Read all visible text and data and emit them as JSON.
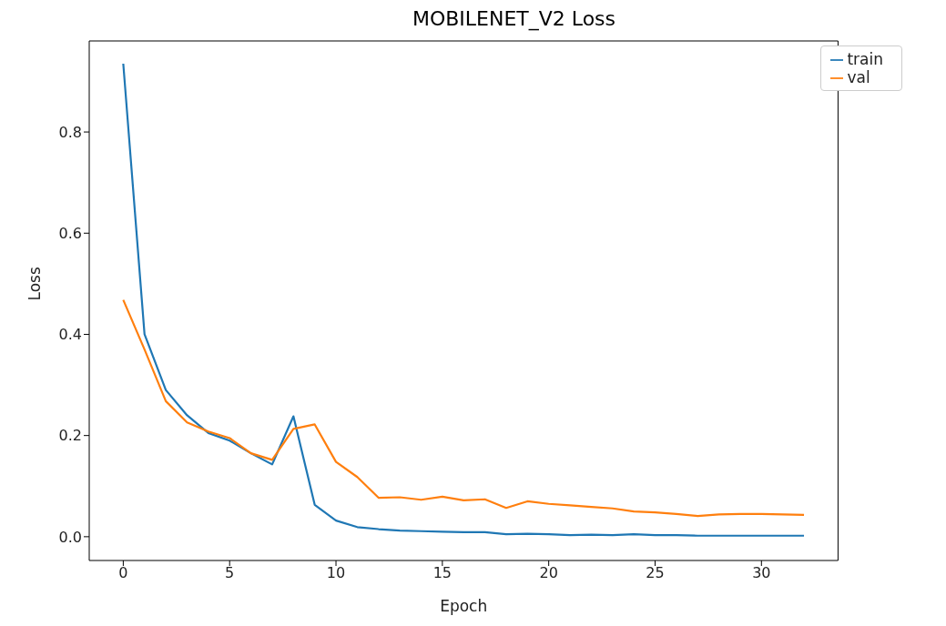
{
  "chart_data": {
    "type": "line",
    "title": "MOBILENET_V2 Loss",
    "xlabel": "Epoch",
    "ylabel": "Loss",
    "x": [
      0,
      1,
      2,
      3,
      4,
      5,
      6,
      7,
      8,
      9,
      10,
      11,
      12,
      13,
      14,
      15,
      16,
      17,
      18,
      19,
      20,
      21,
      22,
      23,
      24,
      25,
      26,
      27,
      28,
      29,
      30,
      31,
      32
    ],
    "series": [
      {
        "name": "train",
        "color": "#1f77b4",
        "values": [
          0.935,
          0.4,
          0.29,
          0.24,
          0.205,
          0.19,
          0.165,
          0.143,
          0.238,
          0.063,
          0.032,
          0.019,
          0.015,
          0.012,
          0.011,
          0.01,
          0.009,
          0.009,
          0.005,
          0.006,
          0.005,
          0.003,
          0.004,
          0.003,
          0.005,
          0.003,
          0.003,
          0.002,
          0.002,
          0.002,
          0.002,
          0.002,
          0.002
        ]
      },
      {
        "name": "val",
        "color": "#ff7f0e",
        "values": [
          0.468,
          0.37,
          0.268,
          0.226,
          0.208,
          0.195,
          0.165,
          0.152,
          0.213,
          0.222,
          0.148,
          0.118,
          0.077,
          0.078,
          0.073,
          0.079,
          0.072,
          0.074,
          0.057,
          0.07,
          0.065,
          0.062,
          0.059,
          0.056,
          0.05,
          0.048,
          0.045,
          0.041,
          0.044,
          0.045,
          0.045,
          0.044,
          0.043
        ]
      }
    ],
    "xlim": [
      -1.6,
      33.6
    ],
    "xticks": [
      0,
      5,
      10,
      15,
      20,
      25,
      30
    ],
    "ylim": [
      -0.047,
      0.98
    ],
    "yticks": [
      {
        "value": 0,
        "label": "0.0"
      },
      {
        "value": 0.2,
        "label": "0.2"
      },
      {
        "value": 0.4,
        "label": "0.4"
      },
      {
        "value": 0.6,
        "label": "0.6"
      },
      {
        "value": 0.8,
        "label": "0.8"
      }
    ],
    "grid": false,
    "legend": "top right",
    "marker": "none",
    "line_style": "solid"
  }
}
